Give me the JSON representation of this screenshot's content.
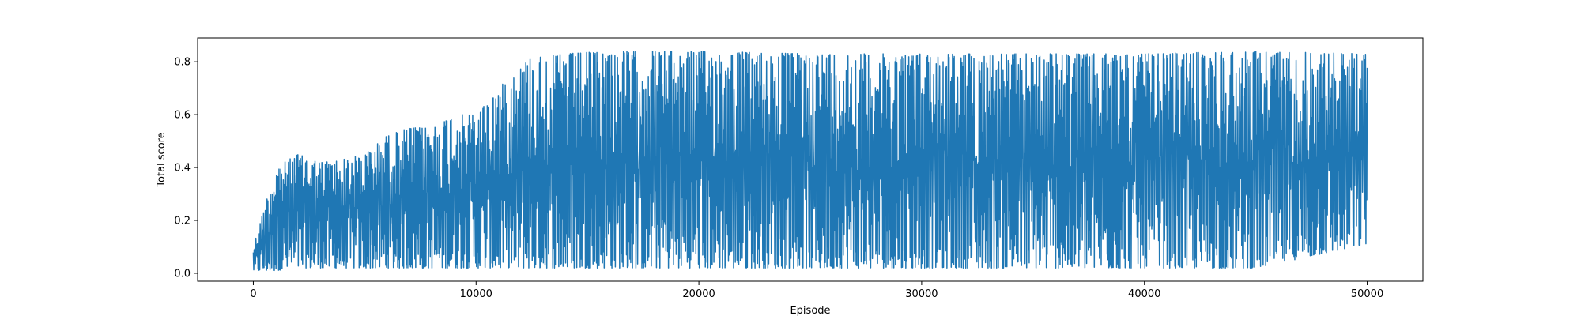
{
  "chart_data": {
    "type": "line",
    "xlabel": "Episode",
    "ylabel": "Total score",
    "xlim": [
      -2500,
      52500
    ],
    "ylim": [
      -0.03,
      0.89
    ],
    "xticks": [
      0,
      10000,
      20000,
      30000,
      40000,
      50000
    ],
    "xtick_labels": [
      "0",
      "10000",
      "20000",
      "30000",
      "40000",
      "50000"
    ],
    "yticks": [
      0.0,
      0.2,
      0.4,
      0.6,
      0.8
    ],
    "ytick_labels": [
      "0.0",
      "0.2",
      "0.4",
      "0.6",
      "0.8"
    ],
    "grid": false,
    "color": "#1f77b4",
    "series": [
      {
        "x_range": [
          0,
          50000
        ],
        "envelope_x": [
          0,
          500,
          1000,
          2000,
          3000,
          4000,
          5000,
          6000,
          7000,
          8000,
          9000,
          10000,
          11000,
          12000,
          12500,
          13000,
          14000,
          16000,
          20000,
          25000,
          30000,
          35000,
          40000,
          45000,
          50000
        ],
        "upper": [
          0.1,
          0.25,
          0.4,
          0.45,
          0.42,
          0.43,
          0.45,
          0.52,
          0.55,
          0.55,
          0.6,
          0.6,
          0.7,
          0.78,
          0.82,
          0.82,
          0.83,
          0.84,
          0.84,
          0.83,
          0.83,
          0.83,
          0.83,
          0.84,
          0.83
        ],
        "lower": [
          0.01,
          0.01,
          0.01,
          0.02,
          0.02,
          0.02,
          0.02,
          0.02,
          0.02,
          0.02,
          0.02,
          0.02,
          0.02,
          0.02,
          0.02,
          0.02,
          0.02,
          0.02,
          0.02,
          0.02,
          0.02,
          0.02,
          0.02,
          0.02,
          0.11
        ]
      }
    ]
  }
}
